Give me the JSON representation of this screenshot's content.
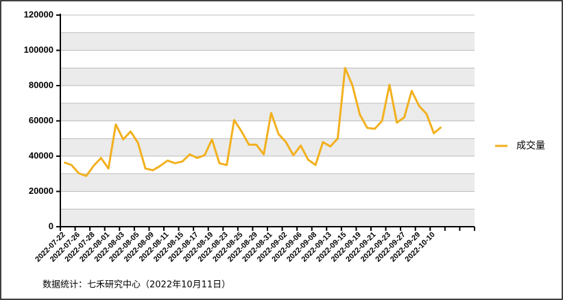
{
  "chart_data": {
    "type": "line",
    "categories": [
      "2022-07-22",
      null,
      "2022-07-26",
      null,
      "2022-07-28",
      null,
      "2022-08-01",
      null,
      "2022-08-03",
      null,
      "2022-08-05",
      null,
      "2022-08-09",
      null,
      "2022-08-11",
      null,
      "2022-08-15",
      null,
      "2022-08-17",
      null,
      "2022-08-19",
      null,
      "2022-08-23",
      null,
      "2022-08-25",
      null,
      "2022-08-29",
      null,
      "2022-08-31",
      null,
      "2022-09-02",
      null,
      "2022-09-06",
      null,
      "2022-09-08",
      null,
      "2022-09-13",
      null,
      "2022-09-15",
      null,
      "2022-09-19",
      null,
      "2022-09-21",
      null,
      "2022-09-23",
      null,
      "2022-09-27",
      null,
      "2022-09-29",
      null,
      "2022-10-10",
      null,
      null,
      null,
      null,
      null
    ],
    "series": [
      {
        "name": "成交量",
        "color": "#f2b01e",
        "values": [
          36500,
          35000,
          30300,
          28800,
          34500,
          39000,
          33000,
          58000,
          49500,
          54000,
          47500,
          33000,
          32000,
          34500,
          37500,
          36000,
          37000,
          41000,
          39000,
          40500,
          49500,
          36000,
          35000,
          60500,
          54000,
          46500,
          46500,
          41000,
          64500,
          52500,
          48000,
          40500,
          46000,
          38000,
          35000,
          48000,
          45500,
          50000,
          90000,
          80000,
          63500,
          56000,
          55500,
          60000,
          80500,
          59000,
          62000,
          77000,
          68500,
          64000,
          53000,
          56500,
          null,
          null,
          null,
          null
        ]
      }
    ],
    "ylim": [
      0,
      120000
    ],
    "yticks": [
      0,
      20000,
      40000,
      60000,
      80000,
      100000,
      120000
    ],
    "grid": true,
    "legend": "right",
    "source": "数据统计：七禾研究中心（2022年10月11日）"
  }
}
